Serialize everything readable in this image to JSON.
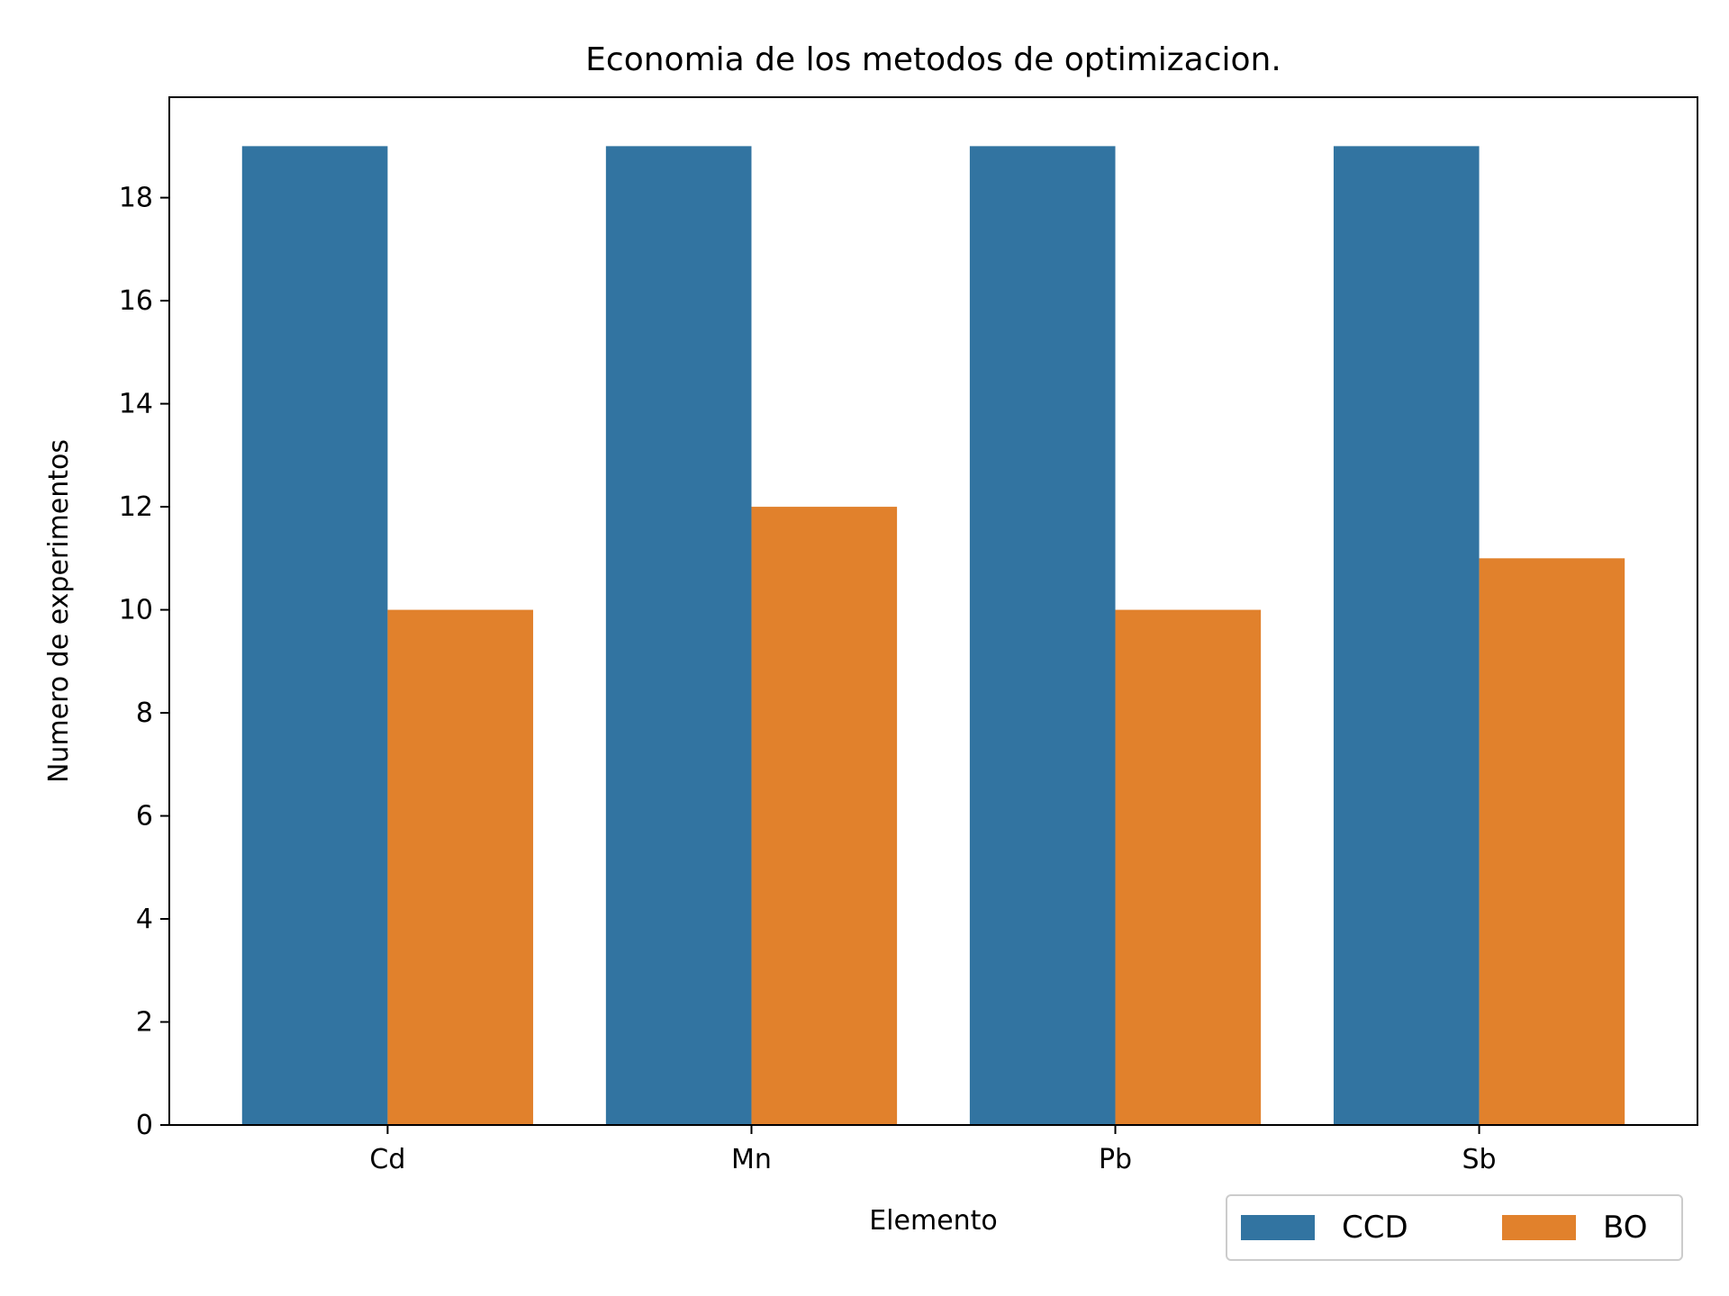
{
  "chart_data": {
    "type": "bar",
    "title": "Economia de los metodos de optimizacion.",
    "xlabel": "Elemento",
    "ylabel": "Numero de experimentos",
    "categories": [
      "Cd",
      "Mn",
      "Pb",
      "Sb"
    ],
    "series": [
      {
        "name": "CCD",
        "color": "#3274a1",
        "values": [
          19,
          19,
          19,
          19
        ]
      },
      {
        "name": "BO",
        "color": "#e1812c",
        "values": [
          10,
          12,
          10,
          11
        ]
      }
    ],
    "ylim": [
      0,
      19.95
    ],
    "yticks": [
      0,
      2,
      4,
      6,
      8,
      10,
      12,
      14,
      16,
      18
    ],
    "grid": false,
    "legend": {
      "position": "bottom-right",
      "columns": 2
    }
  }
}
